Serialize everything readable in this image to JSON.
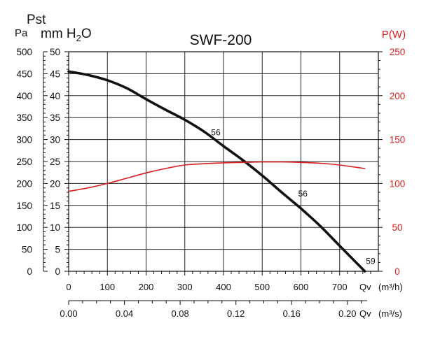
{
  "header": {
    "pst_label": "Pst",
    "pa_unit": "Pa",
    "mmh2o_unit_prefix": "mm H",
    "mmh2o_unit_sub": "2",
    "mmh2o_unit_suffix": "O",
    "power_unit": "P(W)"
  },
  "chart_data": {
    "type": "line",
    "title": "SWF-200",
    "x": {
      "label_m3h": "Qv",
      "unit_m3h": "(m³/h)",
      "range_m3h": [
        0,
        800
      ],
      "ticks_m3h": [
        0,
        100,
        200,
        300,
        400,
        500,
        600,
        700
      ],
      "tick_labels_m3h": [
        "0",
        "100",
        "200",
        "300",
        "400",
        "500",
        "600",
        "700"
      ],
      "label_m3s": "Qv",
      "unit_m3s": "(m³/s)",
      "ticks_m3s": [
        0.0,
        0.04,
        0.08,
        0.12,
        0.16,
        0.2
      ],
      "tick_labels_m3s": [
        "0.00",
        "0.04",
        "0.08",
        "0.12",
        "0.16",
        "0.20"
      ]
    },
    "y_left_pa": {
      "range": [
        0,
        500
      ],
      "ticks": [
        0,
        50,
        100,
        150,
        200,
        250,
        300,
        350,
        400,
        450,
        500
      ],
      "tick_labels": [
        "0",
        "50",
        "100",
        "150",
        "200",
        "250",
        "300",
        "350",
        "400",
        "450",
        "500"
      ]
    },
    "y_left_mmh2o": {
      "range": [
        0,
        50
      ],
      "ticks": [
        0,
        5,
        10,
        15,
        20,
        25,
        30,
        35,
        40,
        45,
        50
      ],
      "tick_labels": [
        "0",
        "5",
        "10",
        "15",
        "20",
        "25",
        "30",
        "35",
        "40",
        "45",
        "50"
      ]
    },
    "y_right_power": {
      "range": [
        0,
        250
      ],
      "ticks": [
        0,
        50,
        100,
        150,
        200,
        250
      ],
      "tick_labels": [
        "0",
        "50",
        "100",
        "150",
        "200",
        "250"
      ],
      "color": "#d81e1e"
    },
    "grid": true,
    "series": [
      {
        "name": "Pressure (Pst)",
        "axis": "pressure_pa",
        "color": "#111111",
        "points": [
          [
            0,
            455
          ],
          [
            50,
            447
          ],
          [
            100,
            435
          ],
          [
            150,
            417
          ],
          [
            200,
            392
          ],
          [
            250,
            368
          ],
          [
            300,
            345
          ],
          [
            350,
            318
          ],
          [
            400,
            285
          ],
          [
            450,
            253
          ],
          [
            500,
            218
          ],
          [
            550,
            180
          ],
          [
            600,
            143
          ],
          [
            650,
            103
          ],
          [
            700,
            58
          ],
          [
            765,
            0
          ]
        ]
      },
      {
        "name": "Power P(W)",
        "axis": "power_w",
        "color": "#d81e1e",
        "points": [
          [
            0,
            91
          ],
          [
            50,
            95
          ],
          [
            100,
            100
          ],
          [
            150,
            106
          ],
          [
            200,
            112
          ],
          [
            250,
            117
          ],
          [
            300,
            121
          ],
          [
            350,
            122.5
          ],
          [
            400,
            123.5
          ],
          [
            450,
            124
          ],
          [
            500,
            124.5
          ],
          [
            550,
            124.5
          ],
          [
            600,
            124
          ],
          [
            650,
            123
          ],
          [
            700,
            121
          ],
          [
            765,
            117
          ]
        ]
      }
    ],
    "annotations": [
      {
        "text": "56",
        "x": 380,
        "y": 310
      },
      {
        "text": "56",
        "x": 605,
        "y": 170
      },
      {
        "text": "59",
        "x": 780,
        "y": 17
      }
    ]
  }
}
